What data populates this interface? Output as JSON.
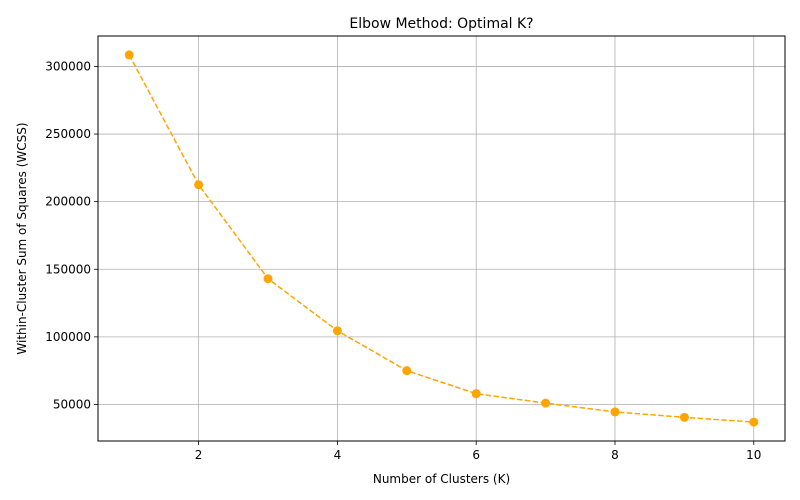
{
  "chart_data": {
    "type": "line",
    "title": "Elbow Method: Optimal K?",
    "xlabel": "Number of Clusters (K)",
    "ylabel": "Within-Cluster Sum of Squares (WCSS)",
    "x": [
      1,
      2,
      3,
      4,
      5,
      6,
      7,
      8,
      9,
      10
    ],
    "series": [
      {
        "values": [
          308500,
          212500,
          143000,
          104500,
          75000,
          58000,
          51000,
          44500,
          40500,
          37000
        ],
        "color": "#ffa500",
        "line_style": "dashed",
        "marker": "circle"
      }
    ],
    "xlim": [
      0.55,
      10.45
    ],
    "ylim": [
      23000,
      322500
    ],
    "xticks": [
      2,
      4,
      6,
      8,
      10
    ],
    "yticks": [
      50000,
      100000,
      150000,
      200000,
      250000,
      300000
    ],
    "grid": true
  }
}
